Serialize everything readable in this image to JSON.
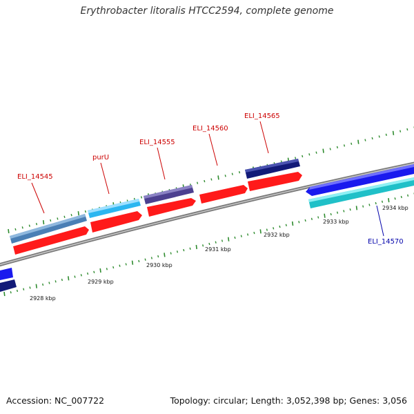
{
  "title": "Erythrobacter litoralis HTCC2594, complete genome",
  "footer": {
    "accession": "Accession: NC_007722",
    "summary": "Topology: circular; Length: 3,052,398 bp; Genes: 3,056"
  },
  "colors": {
    "backbone": "#8c8c8c",
    "tick": "#2e8b2e",
    "forward_cds": "#ff1a1a",
    "reverse_cds": "#1a1aee",
    "label_forward": "#cc0000",
    "label_reverse": "#0000aa"
  },
  "scale": {
    "unit": "kbp",
    "labels": [
      {
        "kbp": 2928,
        "text": "2928 kbp"
      },
      {
        "kbp": 2929,
        "text": "2929 kbp"
      },
      {
        "kbp": 2930,
        "text": "2930 kbp"
      },
      {
        "kbp": 2931,
        "text": "2931 kbp"
      },
      {
        "kbp": 2932,
        "text": "2932 kbp"
      },
      {
        "kbp": 2933,
        "text": "2933 kbp"
      },
      {
        "kbp": 2934,
        "text": "2934 kbp"
      }
    ]
  },
  "genes": [
    {
      "id": "ELI_14545",
      "label": "ELI_14545",
      "strand": "+",
      "color": "#4a7fb5"
    },
    {
      "id": "purU",
      "label": "purU",
      "strand": "+",
      "color": "#2bb6f0"
    },
    {
      "id": "ELI_14555",
      "label": "ELI_14555",
      "strand": "+",
      "color": "#4c4090"
    },
    {
      "id": "ELI_14560",
      "label": "ELI_14560",
      "strand": "+",
      "color": null
    },
    {
      "id": "ELI_14565",
      "label": "ELI_14565",
      "strand": "+",
      "color": "#121a78"
    },
    {
      "id": "ELI_14570",
      "label": "ELI_14570",
      "strand": "-",
      "color": "#20c0c8"
    }
  ]
}
